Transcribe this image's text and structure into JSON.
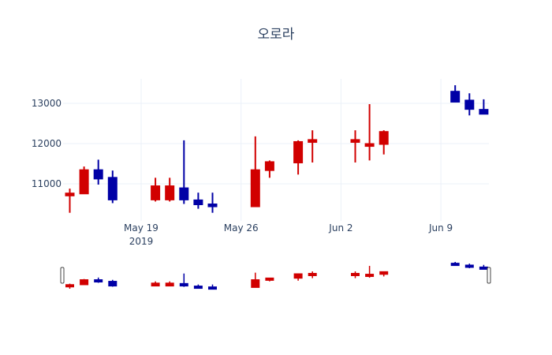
{
  "chart_data": {
    "type": "candlestick",
    "title": "오로라",
    "xlabel": "",
    "ylabel": "",
    "ylim": [
      10150,
      13650
    ],
    "yticks": [
      11000,
      12000,
      13000
    ],
    "ytick_labels": [
      "11000",
      "12000",
      "13000"
    ],
    "xticks": [
      "2019-05-19",
      "2019-05-26",
      "2019-06-02",
      "2019-06-09"
    ],
    "xtick_labels": [
      "May 19",
      "May 26",
      "Jun 2",
      "Jun 9"
    ],
    "xtick_sublabel": "2019",
    "grid": true,
    "legend": false,
    "rangeslider": true,
    "colors": {
      "increasing": "#0000a6",
      "decreasing": "#d10000"
    },
    "x": [
      "2019-05-14",
      "2019-05-15",
      "2019-05-16",
      "2019-05-17",
      "2019-05-20",
      "2019-05-21",
      "2019-05-22",
      "2019-05-23",
      "2019-05-24",
      "2019-05-27",
      "2019-05-28",
      "2019-05-30",
      "2019-05-31",
      "2019-06-03",
      "2019-06-04",
      "2019-06-05",
      "2019-06-10",
      "2019-06-11",
      "2019-06-12"
    ],
    "open": [
      10770,
      11350,
      11120,
      10600,
      10950,
      10950,
      10600,
      10480,
      10430,
      11350,
      11550,
      12050,
      12100,
      12100,
      12000,
      12300,
      13030,
      12850,
      12730
    ],
    "high": [
      10880,
      11430,
      11600,
      11330,
      11150,
      11150,
      12080,
      10780,
      10780,
      12180,
      11580,
      12080,
      12330,
      12330,
      12980,
      12330,
      13450,
      13250,
      13100
    ],
    "low": [
      10280,
      10750,
      10980,
      10520,
      10560,
      10560,
      10500,
      10380,
      10280,
      10430,
      11150,
      11230,
      11530,
      11530,
      11580,
      11730,
      13030,
      12700,
      12730
    ],
    "close": [
      10700,
      10750,
      11350,
      11160,
      10600,
      10600,
      10900,
      10600,
      10500,
      10430,
      11330,
      11520,
      12030,
      12030,
      11930,
      11980,
      13300,
      13080,
      12850
    ]
  }
}
